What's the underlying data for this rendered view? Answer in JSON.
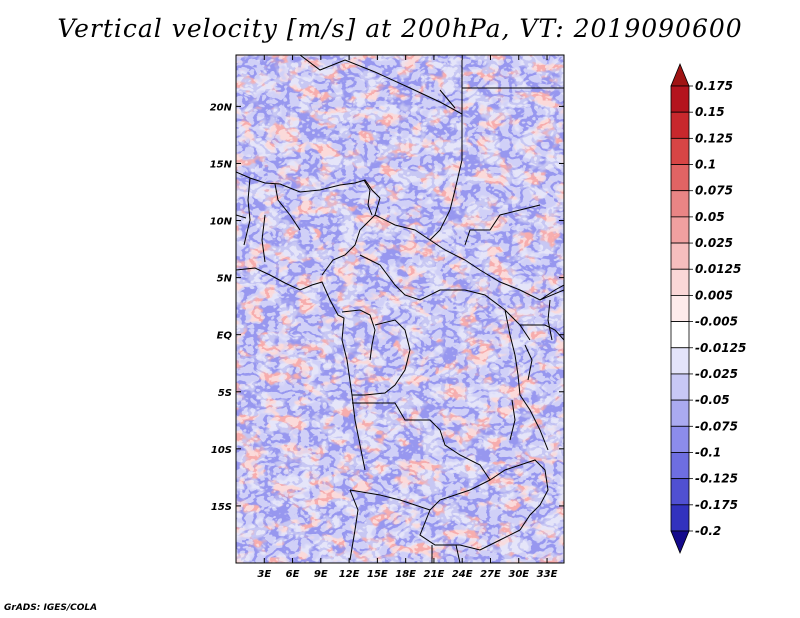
{
  "title": "Vertical velocity [m/s] at 200hPa, VT: 2019090600",
  "credit": "GrADS: IGES/COLA",
  "map": {
    "lon_range": [
      0,
      34.8
    ],
    "lat_range": [
      -20,
      24.5
    ],
    "lon_ticks": [
      {
        "value": 3,
        "label": "3E"
      },
      {
        "value": 6,
        "label": "6E"
      },
      {
        "value": 9,
        "label": "9E"
      },
      {
        "value": 12,
        "label": "12E"
      },
      {
        "value": 15,
        "label": "15E"
      },
      {
        "value": 18,
        "label": "18E"
      },
      {
        "value": 21,
        "label": "21E"
      },
      {
        "value": 24,
        "label": "24E"
      },
      {
        "value": 27,
        "label": "27E"
      },
      {
        "value": 30,
        "label": "30E"
      },
      {
        "value": 33,
        "label": "33E"
      }
    ],
    "lat_ticks": [
      {
        "value": 20,
        "label": "20N"
      },
      {
        "value": 15,
        "label": "15N"
      },
      {
        "value": 10,
        "label": "10N"
      },
      {
        "value": 5,
        "label": "5N"
      },
      {
        "value": 0,
        "label": "EQ"
      },
      {
        "value": -5,
        "label": "5S"
      },
      {
        "value": -10,
        "label": "10S"
      },
      {
        "value": -15,
        "label": "15S"
      }
    ]
  },
  "colorbar": {
    "levels": [
      {
        "label": "0.175",
        "color": "#b4141e"
      },
      {
        "label": "0.15",
        "color": "#c8282d"
      },
      {
        "label": "0.125",
        "color": "#d74545"
      },
      {
        "label": "0.1",
        "color": "#e16464"
      },
      {
        "label": "0.075",
        "color": "#e98585"
      },
      {
        "label": "0.05",
        "color": "#f0a0a0"
      },
      {
        "label": "0.025",
        "color": "#f6bebe"
      },
      {
        "label": "0.0125",
        "color": "#fad7d7"
      },
      {
        "label": "0.005",
        "color": "#fdebeb"
      },
      {
        "label": "-0.005",
        "color": "#ffffff"
      },
      {
        "label": "-0.0125",
        "color": "#e4e4fa"
      },
      {
        "label": "-0.025",
        "color": "#c8c8f5"
      },
      {
        "label": "-0.05",
        "color": "#aaaaf0"
      },
      {
        "label": "-0.075",
        "color": "#8c8ceb"
      },
      {
        "label": "-0.1",
        "color": "#6e6ee1"
      },
      {
        "label": "-0.125",
        "color": "#5050d2"
      },
      {
        "label": "-0.175",
        "color": "#3232be"
      },
      {
        "label": "-0.2",
        "color": "#1e1ea5"
      }
    ],
    "top_color": "#a01414",
    "bottom_color": "#140a8c"
  }
}
